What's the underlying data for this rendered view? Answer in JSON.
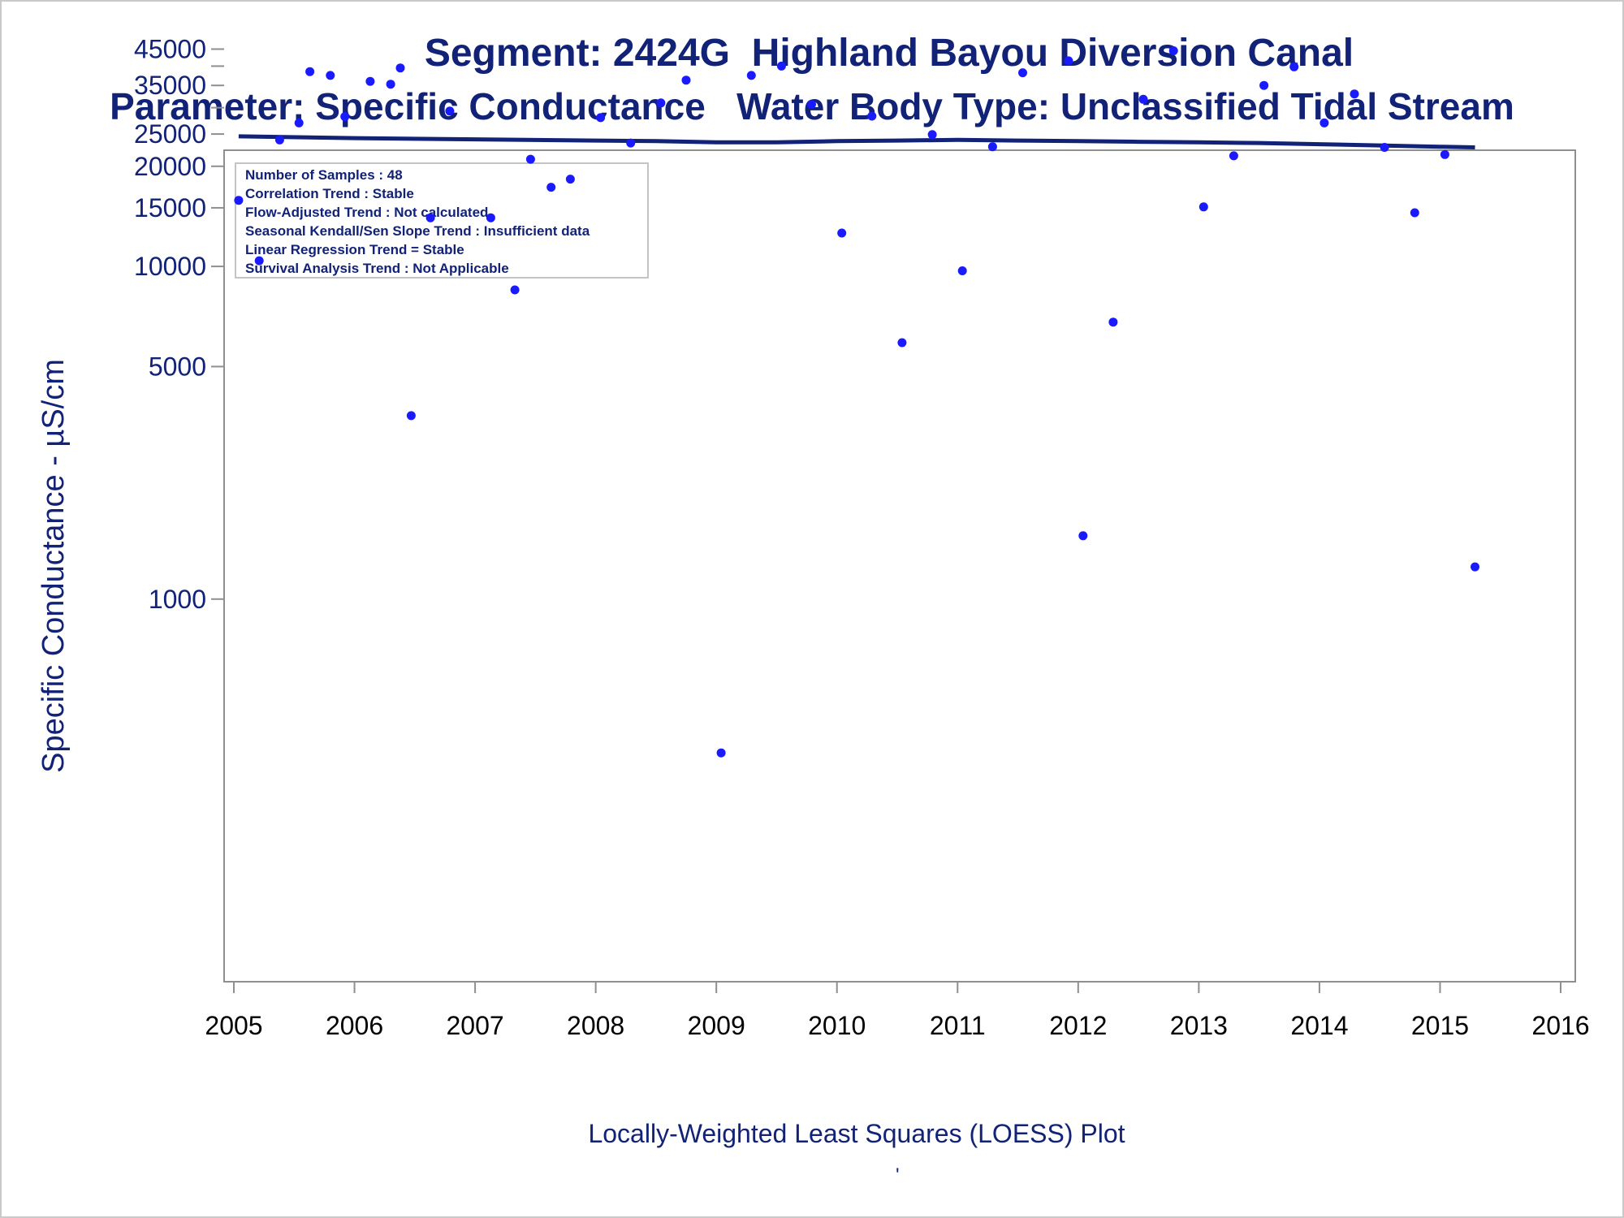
{
  "chart_data": {
    "type": "scatter",
    "title": "Segment: 2424G  Highland Bayou Diversion Canal",
    "subtitle": "Parameter: Specific Conductance   Water Body Type: Unclassified Tidal Stream",
    "xlabel": "Locally-Weighted Least Squares (LOESS) Plot",
    "ylabel": "Specific Conductance -  µS/cm",
    "footnote": "'",
    "y_scale": "log",
    "xlim": [
      2005,
      2016
    ],
    "ylim": [
      330,
      48000
    ],
    "x_ticks": [
      "2005",
      "2006",
      "2007",
      "2008",
      "2009",
      "2010",
      "2011",
      "2012",
      "2013",
      "2014",
      "2015",
      "2016"
    ],
    "y_ticks": [
      1000,
      5000,
      10000,
      15000,
      20000,
      25000,
      35000,
      45000
    ],
    "y_tick_labels": [
      "1000",
      "5000",
      "10000",
      "15000",
      "20000",
      "25000",
      "35000",
      "45000"
    ],
    "y_minor_ticks": [
      30000,
      40000
    ],
    "grid": false,
    "legend_box": {
      "placement": "top-left",
      "lines": [
        "Number of Samples : 48",
        "Correlation Trend : Stable",
        "Flow-Adjusted Trend : Not calculated",
        "Seasonal Kendall/Sen Slope Trend : Insufficient data",
        "Linear Regression Trend = Stable",
        "Survival Analysis Trend : Not Applicable"
      ]
    },
    "series": [
      {
        "kind": "points",
        "color": "#1a1aff",
        "points": [
          [
            2005.04,
            15800
          ],
          [
            2005.21,
            10400
          ],
          [
            2005.38,
            24000
          ],
          [
            2005.54,
            27000
          ],
          [
            2005.63,
            38500
          ],
          [
            2005.8,
            37500
          ],
          [
            2005.92,
            28200
          ],
          [
            2006.13,
            36000
          ],
          [
            2006.3,
            35300
          ],
          [
            2006.38,
            39500
          ],
          [
            2006.47,
            3560
          ],
          [
            2006.63,
            14000
          ],
          [
            2006.79,
            29300
          ],
          [
            2007.13,
            14000
          ],
          [
            2007.33,
            8500
          ],
          [
            2007.46,
            21000
          ],
          [
            2007.63,
            17300
          ],
          [
            2007.79,
            18300
          ],
          [
            2008.04,
            28000
          ],
          [
            2008.29,
            23500
          ],
          [
            2008.54,
            31000
          ],
          [
            2008.75,
            36300
          ],
          [
            2009.04,
            345
          ],
          [
            2009.29,
            37500
          ],
          [
            2009.54,
            40000
          ],
          [
            2009.79,
            30700
          ],
          [
            2010.04,
            12600
          ],
          [
            2010.29,
            28300
          ],
          [
            2010.54,
            5900
          ],
          [
            2010.79,
            24900
          ],
          [
            2011.04,
            9700
          ],
          [
            2011.29,
            22900
          ],
          [
            2011.54,
            38200
          ],
          [
            2011.92,
            41500
          ],
          [
            2012.04,
            1550
          ],
          [
            2012.29,
            6800
          ],
          [
            2012.54,
            31800
          ],
          [
            2012.79,
            44500
          ],
          [
            2013.04,
            15100
          ],
          [
            2013.29,
            21500
          ],
          [
            2013.54,
            35000
          ],
          [
            2013.79,
            39800
          ],
          [
            2014.04,
            27000
          ],
          [
            2014.29,
            33000
          ],
          [
            2014.54,
            22800
          ],
          [
            2014.79,
            14500
          ],
          [
            2015.04,
            21700
          ],
          [
            2015.29,
            1250
          ]
        ]
      },
      {
        "kind": "loess",
        "color": "#112277",
        "points": [
          [
            2005.04,
            24600
          ],
          [
            2006.0,
            24300
          ],
          [
            2007.0,
            24100
          ],
          [
            2008.0,
            23900
          ],
          [
            2008.5,
            23800
          ],
          [
            2009.0,
            23600
          ],
          [
            2009.5,
            23600
          ],
          [
            2010.0,
            23800
          ],
          [
            2010.5,
            23900
          ],
          [
            2011.0,
            24000
          ],
          [
            2011.5,
            23900
          ],
          [
            2012.0,
            23800
          ],
          [
            2012.5,
            23700
          ],
          [
            2013.0,
            23600
          ],
          [
            2013.5,
            23500
          ],
          [
            2014.0,
            23300
          ],
          [
            2014.5,
            23100
          ],
          [
            2015.0,
            22900
          ],
          [
            2015.29,
            22800
          ]
        ]
      }
    ]
  }
}
